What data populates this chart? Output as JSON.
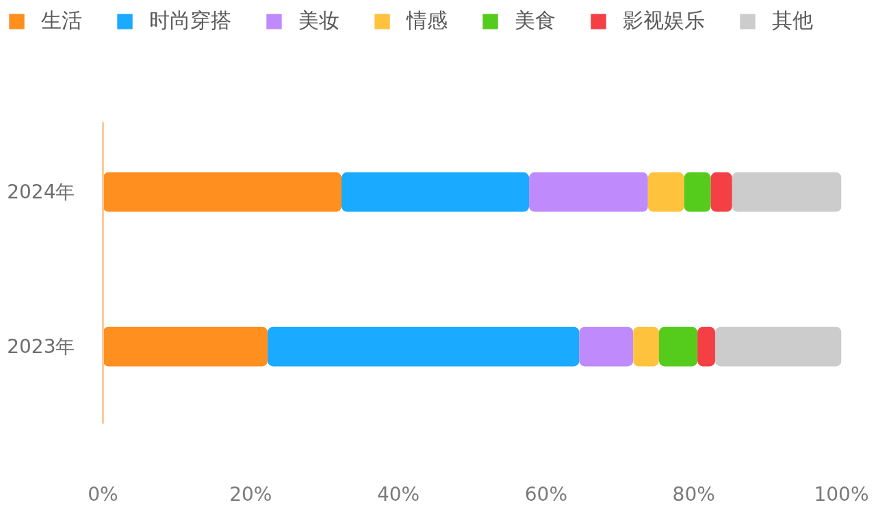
{
  "chart_data": {
    "type": "bar",
    "orientation": "horizontal",
    "stacked": true,
    "categories": [
      "2024年",
      "2023年"
    ],
    "series": [
      {
        "name": "生活",
        "color": "#ff8f1f",
        "values": [
          32.3,
          22.3
        ]
      },
      {
        "name": "时尚穿搭",
        "color": "#1aaaff",
        "values": [
          25.4,
          42.2
        ]
      },
      {
        "name": "美妆",
        "color": "#bf8bfc",
        "values": [
          16.1,
          7.3
        ]
      },
      {
        "name": "情感",
        "color": "#ffc23d",
        "values": [
          4.9,
          3.5
        ]
      },
      {
        "name": "美食",
        "color": "#55cc1c",
        "values": [
          3.6,
          5.2
        ]
      },
      {
        "name": "影视娱乐",
        "color": "#f44045",
        "values": [
          2.9,
          2.4
        ]
      },
      {
        "name": "其他",
        "color": "#cccccc",
        "values": [
          14.8,
          17.1
        ]
      }
    ],
    "xlim": [
      0,
      100
    ],
    "xticks": [
      {
        "value": 0,
        "label": "0%"
      },
      {
        "value": 20,
        "label": "20%"
      },
      {
        "value": 40,
        "label": "40%"
      },
      {
        "value": 60,
        "label": "60%"
      },
      {
        "value": 80,
        "label": "80%"
      },
      {
        "value": 100,
        "label": "100%"
      }
    ],
    "grid": false,
    "legend": "top"
  }
}
